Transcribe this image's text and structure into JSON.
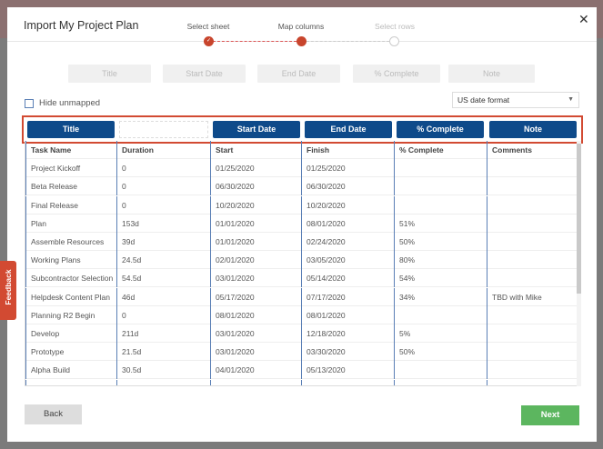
{
  "dialog": {
    "title": "Import My Project Plan",
    "close_icon": "close-icon"
  },
  "stepper": {
    "steps": [
      {
        "label": "Select sheet",
        "state": "complete"
      },
      {
        "label": "Map columns",
        "state": "current"
      },
      {
        "label": "Select rows",
        "state": "upcoming"
      }
    ]
  },
  "target_fields": [
    "Title",
    "Start Date",
    "End Date",
    "% Complete",
    "Note"
  ],
  "hide_unmapped": {
    "label": "Hide unmapped",
    "checked": false
  },
  "date_format": {
    "value": "US date format"
  },
  "mappings": [
    "Title",
    "",
    "Start Date",
    "End Date",
    "% Complete",
    "Note"
  ],
  "table": {
    "headers": [
      "Task Name",
      "Duration",
      "Start",
      "Finish",
      "% Complete",
      "Comments"
    ],
    "rows": [
      [
        "Project Kickoff",
        "0",
        "01/25/2020",
        "01/25/2020",
        "",
        ""
      ],
      [
        "Beta Release",
        "0",
        "06/30/2020",
        "06/30/2020",
        "",
        ""
      ],
      [
        "Final Release",
        "0",
        "10/20/2020",
        "10/20/2020",
        "",
        ""
      ],
      [
        "Plan",
        "153d",
        "01/01/2020",
        "08/01/2020",
        "51%",
        ""
      ],
      [
        "Assemble Resources",
        "39d",
        "01/01/2020",
        "02/24/2020",
        "50%",
        ""
      ],
      [
        "Working Plans",
        "24.5d",
        "02/01/2020",
        "03/05/2020",
        "80%",
        ""
      ],
      [
        "Subcontractor Selection",
        "54.5d",
        "03/01/2020",
        "05/14/2020",
        "54%",
        ""
      ],
      [
        "Helpdesk Content Plan",
        "46d",
        "05/17/2020",
        "07/17/2020",
        "34%",
        "TBD with Mike"
      ],
      [
        "Planning R2 Begin",
        "0",
        "08/01/2020",
        "08/01/2020",
        "",
        ""
      ],
      [
        "Develop",
        "211d",
        "03/01/2020",
        "12/18/2020",
        "5%",
        ""
      ],
      [
        "Prototype",
        "21.5d",
        "03/01/2020",
        "03/30/2020",
        "50%",
        ""
      ],
      [
        "Alpha Build",
        "30.5d",
        "04/01/2020",
        "05/13/2020",
        "",
        ""
      ],
      [
        "",
        "",
        "",
        "",
        "",
        ""
      ]
    ]
  },
  "footer": {
    "back": "Back",
    "next": "Next"
  },
  "feedback": {
    "label": "Feedback"
  },
  "colors": {
    "accent": "#d24a32",
    "mapped": "#0e4a8a",
    "next": "#5cb65f"
  }
}
